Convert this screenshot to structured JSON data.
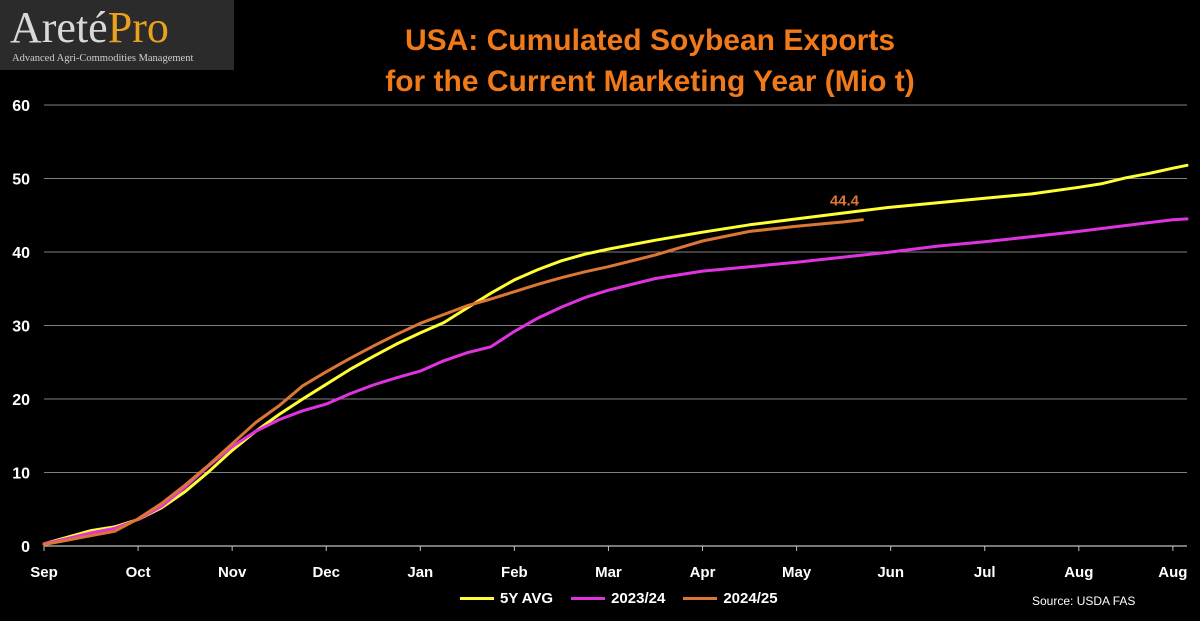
{
  "logo": {
    "name_part1": "Areté",
    "name_part2": "Pro",
    "tagline": "Advanced Agri-Commodities Management"
  },
  "source_note": "Source:  USDA FAS",
  "colors": {
    "background": "#000000",
    "title": "#f07a1a",
    "gridline": "#7f7f7f",
    "axis_text": "#ffffff",
    "logo_pro": "#e9a21b"
  },
  "chart_data": {
    "type": "line",
    "title_lines": [
      "USA: Cumulated Soybean Exports",
      "for the Current Marketing Year (Mio t)"
    ],
    "xlabel": "",
    "ylabel": "",
    "x_tick_labels": [
      "Sep",
      "Oct",
      "Nov",
      "Dec",
      "Jan",
      "Feb",
      "Mar",
      "Apr",
      "May",
      "Jun",
      "Jul",
      "Aug",
      "Aug"
    ],
    "x_unit": "months since start of marketing year (Sep = 0)",
    "xlim": [
      0,
      12.15
    ],
    "ylim": [
      0,
      60
    ],
    "y_ticks": [
      0,
      10,
      20,
      30,
      40,
      50,
      60
    ],
    "grid": true,
    "legend_position": "bottom",
    "series": [
      {
        "name": "5Y AVG",
        "color": "#ffff33",
        "x": [
          0,
          0.25,
          0.5,
          0.75,
          1.0,
          1.25,
          1.5,
          1.75,
          2.0,
          2.25,
          2.5,
          2.75,
          3.0,
          3.25,
          3.5,
          3.75,
          4.0,
          4.25,
          4.5,
          4.75,
          5.0,
          5.25,
          5.5,
          5.75,
          6.0,
          6.5,
          7.0,
          7.5,
          8.0,
          8.5,
          9.0,
          9.5,
          10.0,
          10.5,
          11.0,
          11.25,
          11.5,
          11.75,
          12.0,
          12.15
        ],
        "y": [
          0.3,
          1.2,
          2.1,
          2.6,
          3.6,
          5.2,
          7.4,
          10.1,
          13.0,
          15.6,
          17.9,
          20.0,
          22.0,
          24.0,
          25.8,
          27.5,
          29.0,
          30.4,
          32.4,
          34.4,
          36.2,
          37.6,
          38.8,
          39.7,
          40.4,
          41.6,
          42.7,
          43.7,
          44.5,
          45.3,
          46.1,
          46.7,
          47.3,
          47.9,
          48.8,
          49.3,
          50.1,
          50.7,
          51.4,
          51.8
        ]
      },
      {
        "name": "2023/24",
        "color": "#e033e0",
        "x": [
          0,
          0.25,
          0.5,
          0.75,
          1.0,
          1.25,
          1.5,
          1.75,
          2.0,
          2.25,
          2.5,
          2.75,
          3.0,
          3.25,
          3.5,
          3.75,
          4.0,
          4.25,
          4.5,
          4.75,
          5.0,
          5.25,
          5.5,
          5.75,
          6.0,
          6.5,
          7.0,
          7.5,
          8.0,
          8.5,
          9.0,
          9.5,
          10.0,
          10.5,
          11.0,
          11.5,
          12.0,
          12.15
        ],
        "y": [
          0.3,
          1.0,
          1.8,
          2.4,
          3.6,
          5.4,
          8.0,
          10.9,
          13.5,
          15.6,
          17.2,
          18.4,
          19.3,
          20.7,
          21.9,
          22.9,
          23.8,
          25.2,
          26.3,
          27.1,
          29.2,
          31.0,
          32.5,
          33.8,
          34.8,
          36.4,
          37.4,
          38.0,
          38.6,
          39.3,
          40.0,
          40.8,
          41.4,
          42.1,
          42.8,
          43.6,
          44.4,
          44.5
        ]
      },
      {
        "name": "2024/25",
        "color": "#dc7634",
        "x": [
          0,
          0.25,
          0.5,
          0.75,
          1.0,
          1.25,
          1.5,
          1.75,
          2.0,
          2.25,
          2.5,
          2.75,
          3.0,
          3.25,
          3.5,
          3.75,
          4.0,
          4.25,
          4.5,
          4.75,
          5.0,
          5.25,
          5.5,
          5.75,
          6.0,
          6.5,
          7.0,
          7.5,
          8.0,
          8.5,
          8.7
        ],
        "y": [
          0.2,
          0.8,
          1.4,
          2.0,
          3.7,
          5.8,
          8.3,
          11.0,
          13.9,
          16.8,
          19.1,
          21.8,
          23.7,
          25.5,
          27.2,
          28.8,
          30.3,
          31.5,
          32.7,
          33.6,
          34.6,
          35.6,
          36.5,
          37.3,
          38.0,
          39.6,
          41.5,
          42.8,
          43.5,
          44.1,
          44.4
        ]
      }
    ],
    "annotations": [
      {
        "text": "44.4",
        "x": 8.7,
        "y": 44.4,
        "series": "2024/25"
      }
    ]
  }
}
